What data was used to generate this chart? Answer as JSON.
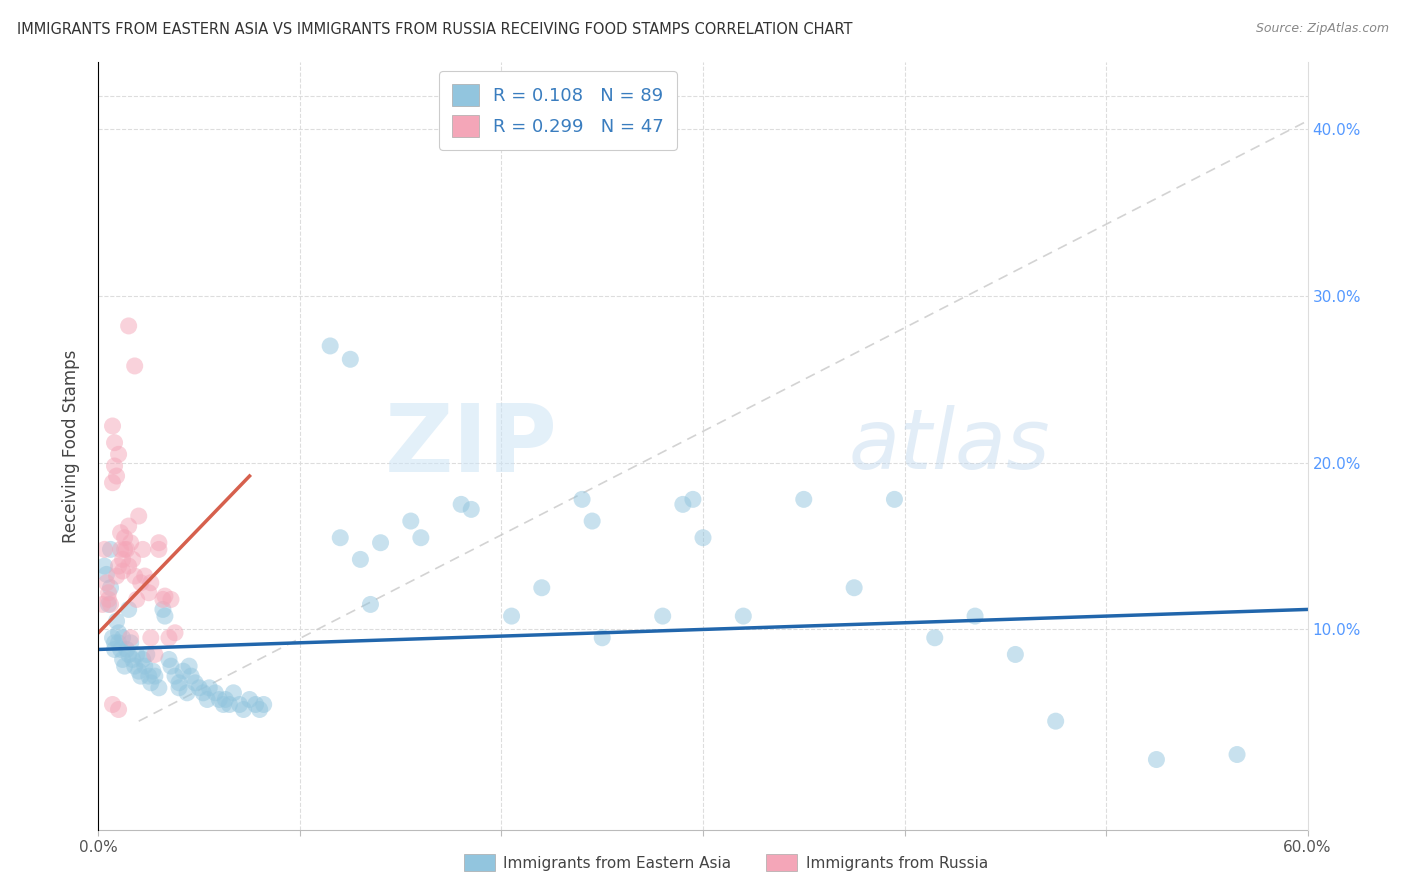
{
  "title": "IMMIGRANTS FROM EASTERN ASIA VS IMMIGRANTS FROM RUSSIA RECEIVING FOOD STAMPS CORRELATION CHART",
  "source": "Source: ZipAtlas.com",
  "xlabel_blue": "Immigrants from Eastern Asia",
  "xlabel_pink": "Immigrants from Russia",
  "ylabel": "Receiving Food Stamps",
  "xlim": [
    0.0,
    0.6
  ],
  "ylim": [
    -0.02,
    0.44
  ],
  "R_blue": 0.108,
  "N_blue": 89,
  "R_pink": 0.299,
  "N_pink": 47,
  "blue_color": "#92c5de",
  "pink_color": "#f4a6b8",
  "line_blue": "#2166ac",
  "line_pink": "#d6604d",
  "line_dash_color": "#c8c8c8",
  "watermark": "ZIPatlas",
  "blue_line": [
    [
      0.0,
      0.088
    ],
    [
      0.6,
      0.112
    ]
  ],
  "pink_line": [
    [
      0.0,
      0.098
    ],
    [
      0.075,
      0.192
    ]
  ],
  "dash_line": [
    [
      0.02,
      0.045
    ],
    [
      0.6,
      0.405
    ]
  ],
  "blue_scatter": [
    [
      0.003,
      0.138
    ],
    [
      0.004,
      0.133
    ],
    [
      0.005,
      0.115
    ],
    [
      0.006,
      0.148
    ],
    [
      0.006,
      0.125
    ],
    [
      0.007,
      0.095
    ],
    [
      0.008,
      0.092
    ],
    [
      0.008,
      0.088
    ],
    [
      0.009,
      0.105
    ],
    [
      0.01,
      0.098
    ],
    [
      0.01,
      0.092
    ],
    [
      0.011,
      0.088
    ],
    [
      0.012,
      0.095
    ],
    [
      0.012,
      0.082
    ],
    [
      0.013,
      0.078
    ],
    [
      0.014,
      0.088
    ],
    [
      0.015,
      0.112
    ],
    [
      0.015,
      0.085
    ],
    [
      0.016,
      0.092
    ],
    [
      0.017,
      0.082
    ],
    [
      0.018,
      0.078
    ],
    [
      0.019,
      0.085
    ],
    [
      0.02,
      0.075
    ],
    [
      0.021,
      0.072
    ],
    [
      0.022,
      0.082
    ],
    [
      0.023,
      0.078
    ],
    [
      0.024,
      0.085
    ],
    [
      0.025,
      0.072
    ],
    [
      0.026,
      0.068
    ],
    [
      0.027,
      0.075
    ],
    [
      0.028,
      0.072
    ],
    [
      0.03,
      0.065
    ],
    [
      0.032,
      0.112
    ],
    [
      0.033,
      0.108
    ],
    [
      0.035,
      0.082
    ],
    [
      0.036,
      0.078
    ],
    [
      0.038,
      0.072
    ],
    [
      0.04,
      0.068
    ],
    [
      0.04,
      0.065
    ],
    [
      0.042,
      0.075
    ],
    [
      0.044,
      0.062
    ],
    [
      0.045,
      0.078
    ],
    [
      0.046,
      0.072
    ],
    [
      0.048,
      0.068
    ],
    [
      0.05,
      0.065
    ],
    [
      0.052,
      0.062
    ],
    [
      0.054,
      0.058
    ],
    [
      0.055,
      0.065
    ],
    [
      0.058,
      0.062
    ],
    [
      0.06,
      0.058
    ],
    [
      0.062,
      0.055
    ],
    [
      0.063,
      0.058
    ],
    [
      0.065,
      0.055
    ],
    [
      0.067,
      0.062
    ],
    [
      0.07,
      0.055
    ],
    [
      0.072,
      0.052
    ],
    [
      0.075,
      0.058
    ],
    [
      0.078,
      0.055
    ],
    [
      0.08,
      0.052
    ],
    [
      0.082,
      0.055
    ],
    [
      0.115,
      0.27
    ],
    [
      0.12,
      0.155
    ],
    [
      0.125,
      0.262
    ],
    [
      0.13,
      0.142
    ],
    [
      0.135,
      0.115
    ],
    [
      0.14,
      0.152
    ],
    [
      0.155,
      0.165
    ],
    [
      0.16,
      0.155
    ],
    [
      0.18,
      0.175
    ],
    [
      0.185,
      0.172
    ],
    [
      0.205,
      0.108
    ],
    [
      0.22,
      0.125
    ],
    [
      0.24,
      0.178
    ],
    [
      0.245,
      0.165
    ],
    [
      0.29,
      0.175
    ],
    [
      0.295,
      0.178
    ],
    [
      0.32,
      0.108
    ],
    [
      0.375,
      0.125
    ],
    [
      0.395,
      0.178
    ],
    [
      0.415,
      0.095
    ],
    [
      0.435,
      0.108
    ],
    [
      0.455,
      0.085
    ],
    [
      0.475,
      0.045
    ],
    [
      0.525,
      0.022
    ],
    [
      0.565,
      0.025
    ],
    [
      0.35,
      0.178
    ],
    [
      0.3,
      0.155
    ],
    [
      0.28,
      0.108
    ],
    [
      0.25,
      0.095
    ]
  ],
  "pink_scatter": [
    [
      0.002,
      0.115
    ],
    [
      0.003,
      0.148
    ],
    [
      0.004,
      0.128
    ],
    [
      0.005,
      0.122
    ],
    [
      0.005,
      0.118
    ],
    [
      0.006,
      0.115
    ],
    [
      0.007,
      0.188
    ],
    [
      0.007,
      0.222
    ],
    [
      0.008,
      0.212
    ],
    [
      0.008,
      0.198
    ],
    [
      0.009,
      0.192
    ],
    [
      0.009,
      0.132
    ],
    [
      0.01,
      0.138
    ],
    [
      0.01,
      0.205
    ],
    [
      0.011,
      0.158
    ],
    [
      0.011,
      0.148
    ],
    [
      0.012,
      0.142
    ],
    [
      0.012,
      0.135
    ],
    [
      0.013,
      0.148
    ],
    [
      0.013,
      0.155
    ],
    [
      0.014,
      0.148
    ],
    [
      0.015,
      0.162
    ],
    [
      0.015,
      0.138
    ],
    [
      0.016,
      0.152
    ],
    [
      0.016,
      0.095
    ],
    [
      0.017,
      0.142
    ],
    [
      0.018,
      0.132
    ],
    [
      0.019,
      0.118
    ],
    [
      0.02,
      0.168
    ],
    [
      0.021,
      0.128
    ],
    [
      0.022,
      0.148
    ],
    [
      0.023,
      0.132
    ],
    [
      0.025,
      0.122
    ],
    [
      0.026,
      0.128
    ],
    [
      0.026,
      0.095
    ],
    [
      0.028,
      0.085
    ],
    [
      0.03,
      0.148
    ],
    [
      0.03,
      0.152
    ],
    [
      0.032,
      0.118
    ],
    [
      0.033,
      0.12
    ],
    [
      0.035,
      0.095
    ],
    [
      0.036,
      0.118
    ],
    [
      0.038,
      0.098
    ],
    [
      0.015,
      0.282
    ],
    [
      0.018,
      0.258
    ],
    [
      0.007,
      0.055
    ],
    [
      0.01,
      0.052
    ]
  ]
}
